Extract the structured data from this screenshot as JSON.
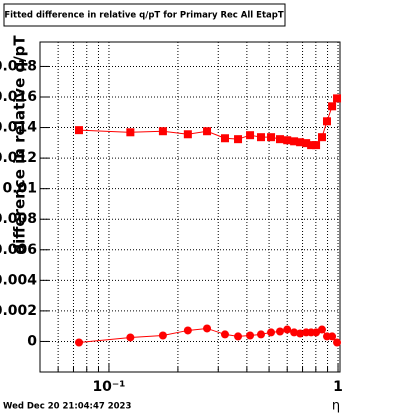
{
  "chart_data": {
    "type": "scatter",
    "title": "Fitted difference in relative q/pT for Primary Rec All EtapT",
    "x_label": "η",
    "y_label": "difference in relative q/pT",
    "timestamp": "Wed Dec 20 21:04:47 2023",
    "xlog": true,
    "grid": true,
    "xlim": [
      0.05,
      1.02
    ],
    "ylim": [
      -0.002,
      0.0196
    ],
    "xticks": [
      {
        "value": 0.1,
        "label": "10⁻¹"
      },
      1
    ],
    "xminorticks": [
      0.06,
      0.07,
      0.08,
      0.09,
      0.2,
      0.3,
      0.4,
      0.5,
      0.6,
      0.7,
      0.8,
      0.9
    ],
    "yticks": [
      0,
      0.002,
      0.004,
      0.006,
      0.008,
      0.01,
      0.012,
      0.014,
      0.016,
      0.018
    ],
    "x": [
      0.074,
      0.124,
      0.172,
      0.221,
      0.268,
      0.321,
      0.366,
      0.413,
      0.461,
      0.51,
      0.558,
      0.6,
      0.643,
      0.683,
      0.726,
      0.763,
      0.802,
      0.851,
      0.895,
      0.942,
      0.99
    ],
    "series": [
      {
        "marker": "square",
        "color": "#ff0000",
        "values": [
          0.01383,
          0.01369,
          0.01376,
          0.01356,
          0.01376,
          0.0133,
          0.01324,
          0.0135,
          0.01337,
          0.01337,
          0.01324,
          0.01317,
          0.0131,
          0.01304,
          0.01298,
          0.01285,
          0.01285,
          0.01337,
          0.01441,
          0.01539,
          0.01591
        ]
      },
      {
        "marker": "circle",
        "color": "#ff0000",
        "values": [
          -7e-05,
          0.00026,
          0.00039,
          0.00072,
          0.00085,
          0.00046,
          0.00033,
          0.00039,
          0.00046,
          0.00059,
          0.00065,
          0.00078,
          0.00059,
          0.00052,
          0.00059,
          0.00059,
          0.00059,
          0.00078,
          0.00033,
          0.00033,
          -7e-05
        ]
      }
    ]
  }
}
